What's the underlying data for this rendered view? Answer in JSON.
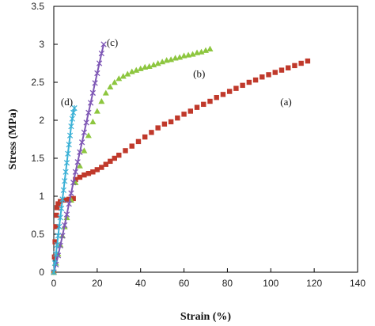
{
  "chart_data": {
    "type": "scatter",
    "title": "",
    "xlabel": "Strain (%)",
    "ylabel": "Stress (MPa)",
    "xlim": [
      0,
      140
    ],
    "ylim": [
      0,
      3.5
    ],
    "x_ticks": [
      "0",
      "20",
      "40",
      "60",
      "80",
      "100",
      "120",
      "140"
    ],
    "y_ticks": [
      "0",
      "0.5",
      "1",
      "1.5",
      "2",
      "2.5",
      "3",
      "3.5"
    ],
    "grid": false,
    "legend": "none",
    "series": [
      {
        "name": "(a)",
        "color": "#c0392b",
        "marker": "square",
        "x": [
          0,
          0.3,
          0.6,
          0.9,
          1.2,
          1.5,
          2,
          3,
          5,
          7,
          9,
          10,
          12,
          14,
          16,
          18,
          20,
          22,
          24,
          26,
          28,
          30,
          33,
          36,
          39,
          42,
          45,
          48,
          51,
          54,
          57,
          60,
          63,
          66,
          69,
          72,
          75,
          78,
          81,
          84,
          87,
          90,
          93,
          96,
          99,
          102,
          105,
          108,
          111,
          114,
          117
        ],
        "y": [
          0,
          0.2,
          0.4,
          0.6,
          0.75,
          0.85,
          0.9,
          0.93,
          0.95,
          0.96,
          0.97,
          1.22,
          1.25,
          1.28,
          1.3,
          1.32,
          1.35,
          1.38,
          1.42,
          1.46,
          1.5,
          1.54,
          1.6,
          1.66,
          1.72,
          1.78,
          1.84,
          1.9,
          1.95,
          1.98,
          2.03,
          2.08,
          2.12,
          2.17,
          2.21,
          2.25,
          2.3,
          2.34,
          2.38,
          2.42,
          2.46,
          2.5,
          2.53,
          2.57,
          2.6,
          2.63,
          2.66,
          2.69,
          2.72,
          2.75,
          2.78
        ]
      },
      {
        "name": "(b)",
        "color": "#8dc63f",
        "marker": "triangle",
        "x": [
          0,
          1,
          2,
          3,
          4,
          5,
          6,
          8,
          10,
          12,
          14,
          16,
          18,
          20,
          22,
          24,
          26,
          28,
          30,
          32,
          34,
          36,
          38,
          40,
          42,
          44,
          46,
          48,
          50,
          52,
          54,
          56,
          58,
          60,
          62,
          64,
          66,
          68,
          70,
          72
        ],
        "y": [
          0,
          0.12,
          0.24,
          0.36,
          0.48,
          0.6,
          0.72,
          0.95,
          1.18,
          1.4,
          1.6,
          1.8,
          1.98,
          2.12,
          2.25,
          2.36,
          2.44,
          2.5,
          2.55,
          2.58,
          2.61,
          2.64,
          2.66,
          2.68,
          2.7,
          2.71,
          2.73,
          2.75,
          2.77,
          2.79,
          2.8,
          2.82,
          2.83,
          2.85,
          2.86,
          2.87,
          2.89,
          2.9,
          2.92,
          2.94
        ]
      },
      {
        "name": "(c)",
        "color": "#7e57b5",
        "marker": "x",
        "x": [
          0,
          1,
          2,
          3,
          4,
          5,
          6,
          7,
          8,
          9,
          10,
          11,
          12,
          13,
          14,
          15,
          16,
          17,
          18,
          19,
          20,
          21,
          22,
          23
        ],
        "y": [
          0,
          0.1,
          0.22,
          0.35,
          0.48,
          0.62,
          0.76,
          0.9,
          1.04,
          1.18,
          1.32,
          1.45,
          1.58,
          1.71,
          1.84,
          1.97,
          2.1,
          2.23,
          2.36,
          2.49,
          2.62,
          2.75,
          2.88,
          3.0
        ]
      },
      {
        "name": "(d)",
        "color": "#3bb1d6",
        "marker": "star",
        "x": [
          0,
          0.5,
          1,
          1.5,
          2,
          2.5,
          3,
          3.5,
          4,
          4.5,
          5,
          5.5,
          6,
          6.5,
          7,
          7.5,
          8,
          8.5,
          9,
          9.5
        ],
        "y": [
          0,
          0.12,
          0.24,
          0.36,
          0.48,
          0.6,
          0.72,
          0.84,
          0.96,
          1.08,
          1.2,
          1.32,
          1.44,
          1.56,
          1.68,
          1.8,
          1.92,
          2.02,
          2.1,
          2.16
        ]
      }
    ],
    "annotations": [
      {
        "text": "(a)",
        "x": 107,
        "y": 2.2
      },
      {
        "text": "(b)",
        "x": 67,
        "y": 2.57
      },
      {
        "text": "(c)",
        "x": 27,
        "y": 2.98
      },
      {
        "text": "(d)",
        "x": 6,
        "y": 2.2
      }
    ]
  }
}
